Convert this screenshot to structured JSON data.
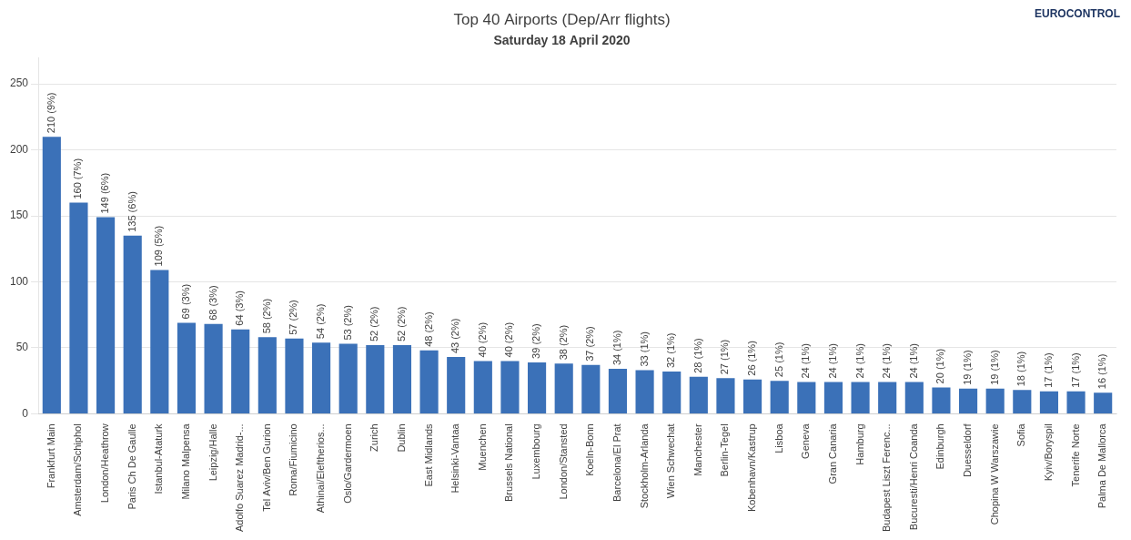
{
  "chart_data": {
    "type": "bar",
    "title": "Top 40 Airports (Dep/Arr flights)",
    "subtitle": "Saturday 18 April 2020",
    "annotations": [
      "EUROCONTROL"
    ],
    "categories": [
      "Frankfurt Main",
      "Amsterdam/Schiphol",
      "London/Heathrow",
      "Paris Ch De Gaulle",
      "Istanbul-Ataturk",
      "Milano Malpensa",
      "Leipzig/Halle",
      "Adolfo Suarez Madrid-...",
      "Tel Aviv/Ben Gurion",
      "Roma/Fiumicino",
      "Athinai/Eleftherios...",
      "Oslo/Gardermoen",
      "Zurich",
      "Dublin",
      "East Midlands",
      "Helsinki-Vantaa",
      "Muenchen",
      "Brussels National",
      "Luxembourg",
      "London/Stansted",
      "Koeln-Bonn",
      "Barcelona/El Prat",
      "Stockholm-Arlanda",
      "Wien Schwechat",
      "Manchester",
      "Berlin-Tegel",
      "Kobenhavn/Kastrup",
      "Lisboa",
      "Geneva",
      "Gran Canaria",
      "Hamburg",
      "Budapest Liszt Ferenc...",
      "Bucuresti/Henri Coanda",
      "Edinburgh",
      "Duesseldorf",
      "Chopina W Warszawie",
      "Sofia",
      "Kyiv/Boryspil",
      "Tenerife Norte",
      "Palma De Mallorca"
    ],
    "values": [
      210,
      160,
      149,
      135,
      109,
      69,
      68,
      64,
      58,
      57,
      54,
      53,
      52,
      52,
      48,
      43,
      40,
      40,
      39,
      38,
      37,
      34,
      33,
      32,
      28,
      27,
      26,
      25,
      24,
      24,
      24,
      24,
      24,
      20,
      19,
      19,
      18,
      17,
      17,
      16
    ],
    "value_labels": [
      "210 (9%)",
      "160 (7%)",
      "149 (6%)",
      "135 (6%)",
      "109 (5%)",
      "69 (3%)",
      "68 (3%)",
      "64 (3%)",
      "58 (2%)",
      "57 (2%)",
      "54 (2%)",
      "53 (2%)",
      "52 (2%)",
      "52 (2%)",
      "48 (2%)",
      "43 (2%)",
      "40 (2%)",
      "40 (2%)",
      "39 (2%)",
      "38 (2%)",
      "37 (2%)",
      "34 (1%)",
      "33 (1%)",
      "32 (1%)",
      "28 (1%)",
      "27 (1%)",
      "26 (1%)",
      "25 (1%)",
      "24 (1%)",
      "24 (1%)",
      "24 (1%)",
      "24 (1%)",
      "24 (1%)",
      "20 (1%)",
      "19 (1%)",
      "19 (1%)",
      "18 (1%)",
      "17 (1%)",
      "17 (1%)",
      "16 (1%)"
    ],
    "data_labels": true,
    "color": "#3b71b8",
    "ylim": [
      0,
      270
    ],
    "yticks": [
      0,
      50,
      100,
      150,
      200,
      250
    ],
    "grid": true
  }
}
